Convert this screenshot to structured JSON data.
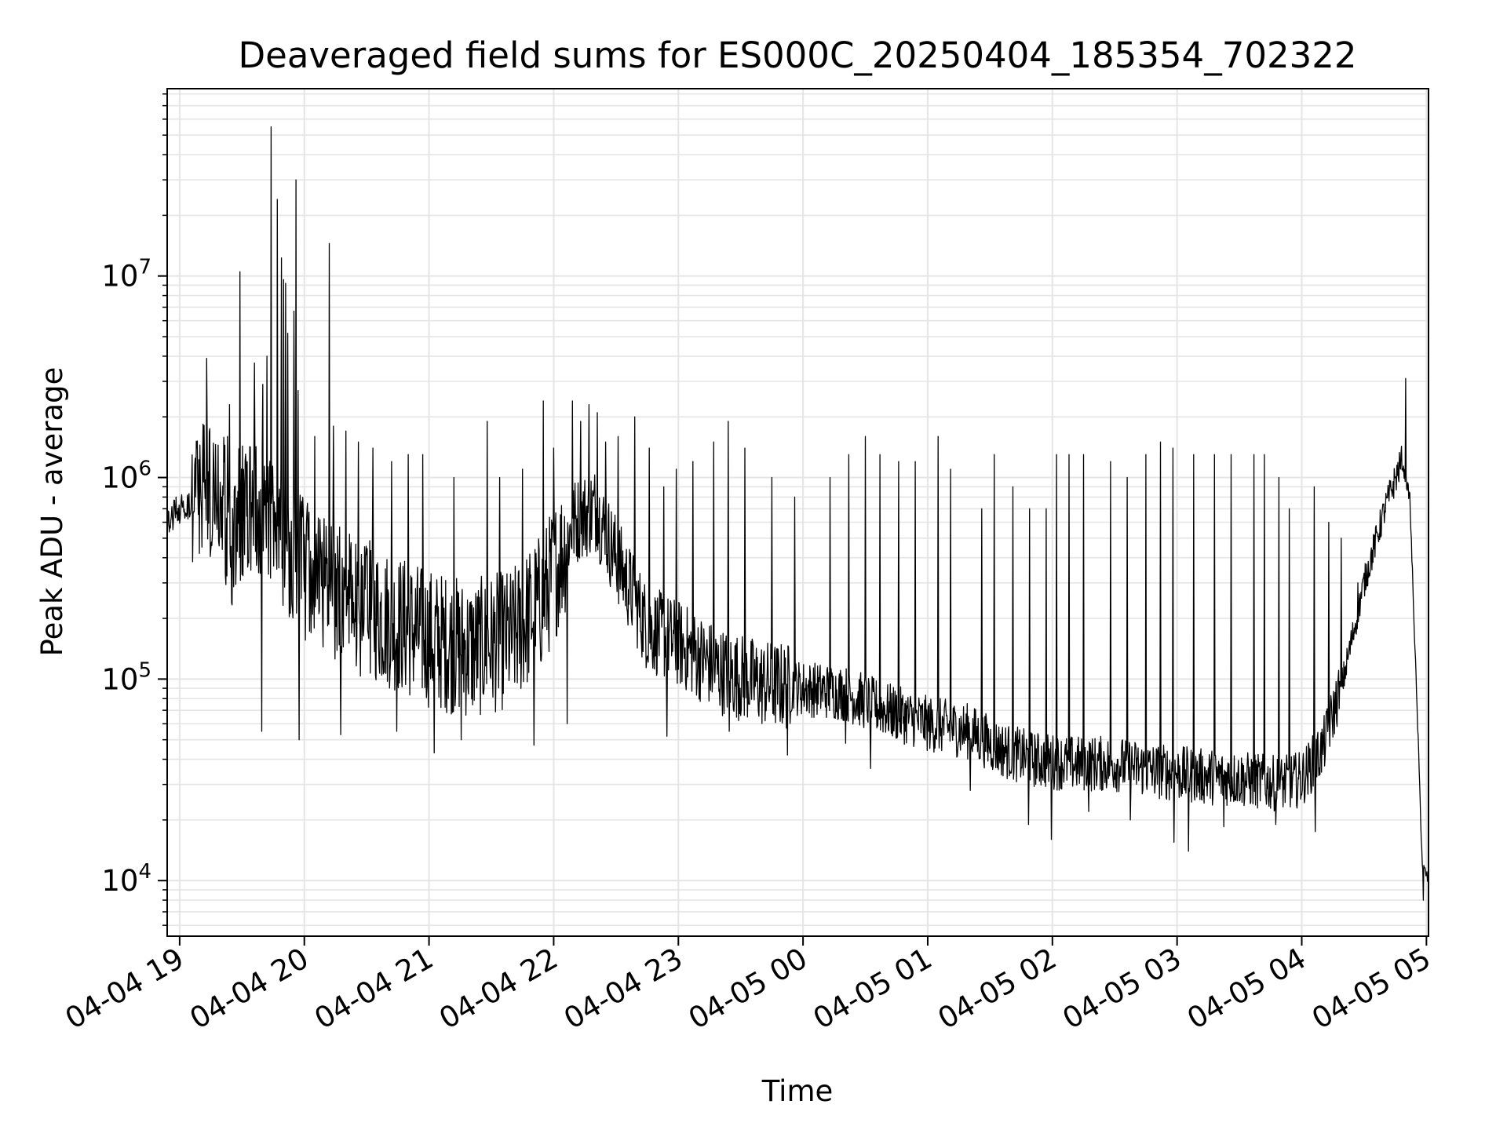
{
  "chart_data": {
    "type": "line",
    "title": "Deaveraged field sums for ES000C_20250404_185354_702322",
    "xlabel": "Time",
    "ylabel": "Peak ADU - average",
    "yscale": "log",
    "ylim": [
      5300,
      85000000
    ],
    "xlim": [
      "2025-04-04 18:54",
      "2025-04-05 05:01"
    ],
    "grid": true,
    "line_color": "#000000",
    "grid_color": "#e5e5e5",
    "x_ticks": [
      {
        "value": "2025-04-04 19:00",
        "label": "04-04 19"
      },
      {
        "value": "2025-04-04 20:00",
        "label": "04-04 20"
      },
      {
        "value": "2025-04-04 21:00",
        "label": "04-04 21"
      },
      {
        "value": "2025-04-04 22:00",
        "label": "04-04 22"
      },
      {
        "value": "2025-04-04 23:00",
        "label": "04-04 23"
      },
      {
        "value": "2025-04-05 00:00",
        "label": "04-05 00"
      },
      {
        "value": "2025-04-05 01:00",
        "label": "04-05 01"
      },
      {
        "value": "2025-04-05 02:00",
        "label": "04-05 02"
      },
      {
        "value": "2025-04-05 03:00",
        "label": "04-05 03"
      },
      {
        "value": "2025-04-05 04:00",
        "label": "04-05 04"
      },
      {
        "value": "2025-04-05 05:00",
        "label": "04-05 05"
      }
    ],
    "y_ticks": [
      {
        "value": 10000,
        "base": "10",
        "exp": "4"
      },
      {
        "value": 100000,
        "base": "10",
        "exp": "5"
      },
      {
        "value": 1000000,
        "base": "10",
        "exp": "6"
      },
      {
        "value": 10000000,
        "base": "10",
        "exp": "7"
      }
    ],
    "series": [
      {
        "baseline": [
          [
            "2025-04-04 18:54",
            600000
          ],
          [
            "2025-04-04 19:00",
            700000
          ],
          [
            "2025-04-04 19:05",
            750000
          ],
          [
            "2025-04-04 19:08",
            900000
          ],
          [
            "2025-04-04 19:15",
            900000
          ],
          [
            "2025-04-04 19:20",
            800000
          ],
          [
            "2025-04-04 19:25",
            500000
          ],
          [
            "2025-04-04 19:30",
            700000
          ],
          [
            "2025-04-04 19:40",
            700000
          ],
          [
            "2025-04-04 19:50",
            500000
          ],
          [
            "2025-04-04 20:00",
            350000
          ],
          [
            "2025-04-04 20:20",
            250000
          ],
          [
            "2025-04-04 20:40",
            200000
          ],
          [
            "2025-04-04 21:00",
            160000
          ],
          [
            "2025-04-04 21:20",
            140000
          ],
          [
            "2025-04-04 21:40",
            160000
          ],
          [
            "2025-04-04 21:55",
            250000
          ],
          [
            "2025-04-04 22:10",
            600000
          ],
          [
            "2025-04-04 22:20",
            700000
          ],
          [
            "2025-04-04 22:30",
            400000
          ],
          [
            "2025-04-04 22:45",
            180000
          ],
          [
            "2025-04-04 23:00",
            150000
          ],
          [
            "2025-04-04 23:20",
            110000
          ],
          [
            "2025-04-04 23:40",
            95000
          ],
          [
            "2025-04-05 00:00",
            90000
          ],
          [
            "2025-04-05 00:20",
            85000
          ],
          [
            "2025-04-05 00:40",
            70000
          ],
          [
            "2025-04-05 01:00",
            60000
          ],
          [
            "2025-04-05 01:20",
            55000
          ],
          [
            "2025-04-05 01:35",
            45000
          ],
          [
            "2025-04-05 01:50",
            40000
          ],
          [
            "2025-04-05 02:10",
            38000
          ],
          [
            "2025-04-05 02:30",
            38000
          ],
          [
            "2025-04-05 02:50",
            35000
          ],
          [
            "2025-04-05 03:10",
            33000
          ],
          [
            "2025-04-05 03:30",
            32000
          ],
          [
            "2025-04-05 03:50",
            30000
          ],
          [
            "2025-04-05 04:00",
            32000
          ],
          [
            "2025-04-05 04:10",
            45000
          ],
          [
            "2025-04-05 04:20",
            100000
          ],
          [
            "2025-04-05 04:30",
            300000
          ],
          [
            "2025-04-05 04:40",
            700000
          ],
          [
            "2025-04-05 04:48",
            1200000
          ],
          [
            "2025-04-05 04:52",
            800000
          ],
          [
            "2025-04-05 04:56",
            50000
          ],
          [
            "2025-04-05 04:58",
            12000
          ],
          [
            "2025-04-05 05:01",
            10000
          ]
        ],
        "spikes": [
          [
            "2025-04-04 19:13",
            3900000
          ],
          [
            "2025-04-04 19:23",
            1600000
          ],
          [
            "2025-04-04 19:24",
            2300000
          ],
          [
            "2025-04-04 19:29",
            10500000
          ],
          [
            "2025-04-04 19:36",
            3700000
          ],
          [
            "2025-04-04 19:40",
            2900000
          ],
          [
            "2025-04-04 19:42",
            4000000
          ],
          [
            "2025-04-04 19:44",
            55000000
          ],
          [
            "2025-04-04 19:47",
            24000000
          ],
          [
            "2025-04-04 19:49",
            12300000
          ],
          [
            "2025-04-04 19:50",
            9600000
          ],
          [
            "2025-04-04 19:51",
            9200000
          ],
          [
            "2025-04-04 19:52",
            5200000
          ],
          [
            "2025-04-04 19:55",
            6700000
          ],
          [
            "2025-04-04 19:56",
            30000000
          ],
          [
            "2025-04-04 19:57",
            2700000
          ],
          [
            "2025-04-04 20:05",
            1600000
          ],
          [
            "2025-04-04 20:12",
            14500000
          ],
          [
            "2025-04-04 20:14",
            1800000
          ],
          [
            "2025-04-04 20:20",
            1700000
          ],
          [
            "2025-04-04 20:26",
            1500000
          ],
          [
            "2025-04-04 20:33",
            1400000
          ],
          [
            "2025-04-04 20:42",
            1200000
          ],
          [
            "2025-04-04 20:50",
            1300000
          ],
          [
            "2025-04-04 20:57",
            1300000
          ],
          [
            "2025-04-04 21:12",
            1000000
          ],
          [
            "2025-04-04 21:28",
            1900000
          ],
          [
            "2025-04-04 21:34",
            1000000
          ],
          [
            "2025-04-04 21:45",
            1100000
          ],
          [
            "2025-04-04 21:55",
            2400000
          ],
          [
            "2025-04-04 22:00",
            1400000
          ],
          [
            "2025-04-04 22:09",
            2400000
          ],
          [
            "2025-04-04 22:13",
            1900000
          ],
          [
            "2025-04-04 22:17",
            2300000
          ],
          [
            "2025-04-04 22:21",
            2100000
          ],
          [
            "2025-04-04 22:25",
            1500000
          ],
          [
            "2025-04-04 22:31",
            1600000
          ],
          [
            "2025-04-04 22:39",
            2000000
          ],
          [
            "2025-04-04 22:46",
            1400000
          ],
          [
            "2025-04-04 22:53",
            900000
          ],
          [
            "2025-04-04 22:59",
            1100000
          ],
          [
            "2025-04-04 23:07",
            1200000
          ],
          [
            "2025-04-04 23:17",
            1500000
          ],
          [
            "2025-04-04 23:24",
            1900000
          ],
          [
            "2025-04-04 23:32",
            1400000
          ],
          [
            "2025-04-04 23:45",
            1000000
          ],
          [
            "2025-04-04 23:56",
            800000
          ],
          [
            "2025-04-05 00:13",
            1000000
          ],
          [
            "2025-04-05 00:22",
            1300000
          ],
          [
            "2025-04-05 00:30",
            1600000
          ],
          [
            "2025-04-05 00:37",
            1300000
          ],
          [
            "2025-04-05 00:46",
            1200000
          ],
          [
            "2025-04-05 00:54",
            1200000
          ],
          [
            "2025-04-05 01:05",
            1600000
          ],
          [
            "2025-04-05 01:11",
            1100000
          ],
          [
            "2025-04-05 01:26",
            700000
          ],
          [
            "2025-04-05 01:32",
            1300000
          ],
          [
            "2025-04-05 01:41",
            900000
          ],
          [
            "2025-04-05 01:49",
            700000
          ],
          [
            "2025-04-05 01:57",
            700000
          ],
          [
            "2025-04-05 02:02",
            1300000
          ],
          [
            "2025-04-05 02:08",
            1300000
          ],
          [
            "2025-04-05 02:15",
            1300000
          ],
          [
            "2025-04-05 02:28",
            1200000
          ],
          [
            "2025-04-05 02:36",
            1000000
          ],
          [
            "2025-04-05 02:45",
            1300000
          ],
          [
            "2025-04-05 02:52",
            1500000
          ],
          [
            "2025-04-05 02:58",
            1400000
          ],
          [
            "2025-04-05 03:08",
            1300000
          ],
          [
            "2025-04-05 03:18",
            1300000
          ],
          [
            "2025-04-05 03:26",
            1300000
          ],
          [
            "2025-04-05 03:37",
            1300000
          ],
          [
            "2025-04-05 03:42",
            1300000
          ],
          [
            "2025-04-05 03:49",
            1000000
          ],
          [
            "2025-04-05 03:54",
            700000
          ],
          [
            "2025-04-05 04:06",
            900000
          ],
          [
            "2025-04-05 04:13",
            600000
          ],
          [
            "2025-04-05 04:19",
            500000
          ],
          [
            "2025-04-05 04:27",
            300000
          ],
          [
            "2025-04-05 04:50",
            3100000
          ]
        ],
        "dips": [
          [
            "2025-04-04 19:40",
            55000
          ],
          [
            "2025-04-04 19:58",
            50000
          ],
          [
            "2025-04-04 20:18",
            53000
          ],
          [
            "2025-04-04 20:45",
            55000
          ],
          [
            "2025-04-04 21:03",
            43000
          ],
          [
            "2025-04-04 21:16",
            50000
          ],
          [
            "2025-04-04 21:51",
            47000
          ],
          [
            "2025-04-04 22:07",
            60000
          ],
          [
            "2025-04-04 22:55",
            52000
          ],
          [
            "2025-04-04 23:25",
            55000
          ],
          [
            "2025-04-04 23:53",
            42000
          ],
          [
            "2025-04-05 00:21",
            48000
          ],
          [
            "2025-04-05 00:33",
            36000
          ],
          [
            "2025-04-05 01:21",
            28000
          ],
          [
            "2025-04-05 01:49",
            19000
          ],
          [
            "2025-04-05 02:00",
            16000
          ],
          [
            "2025-04-05 02:18",
            22000
          ],
          [
            "2025-04-05 02:38",
            20000
          ],
          [
            "2025-04-05 02:59",
            15500
          ],
          [
            "2025-04-05 03:06",
            14000
          ],
          [
            "2025-04-05 03:23",
            18500
          ],
          [
            "2025-04-05 03:48",
            19000
          ],
          [
            "2025-04-05 04:07",
            17500
          ],
          [
            "2025-04-05 04:59",
            8000
          ]
        ]
      }
    ]
  }
}
